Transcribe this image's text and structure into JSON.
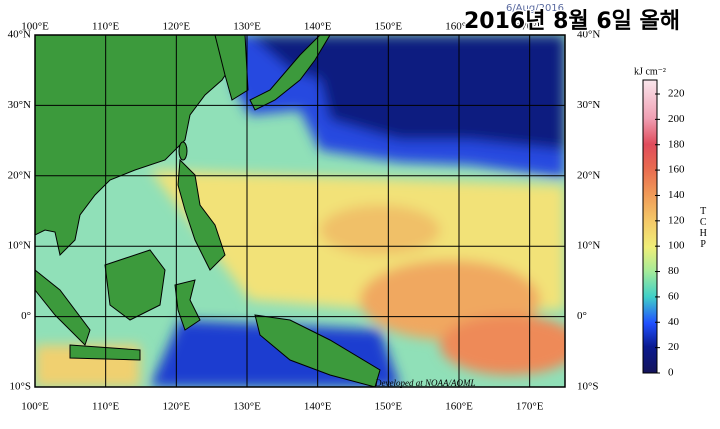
{
  "map": {
    "title": "2016년 8월 6일 올해",
    "date": "6/Aug/2016",
    "lon_labels": [
      "100°E",
      "110°E",
      "120°E",
      "130°E",
      "140°E",
      "150°E",
      "160°E",
      "170°E"
    ],
    "lat_labels": [
      "40°N",
      "30°N",
      "20°N",
      "10°N",
      "0°",
      "10°S"
    ],
    "credit": "Developed at NOAA/AOML",
    "colorbar": {
      "unit": "kJ cm⁻²",
      "label": "TCHP",
      "ticks": [
        0,
        20,
        40,
        60,
        80,
        100,
        120,
        140,
        160,
        180,
        200,
        220
      ]
    }
  }
}
